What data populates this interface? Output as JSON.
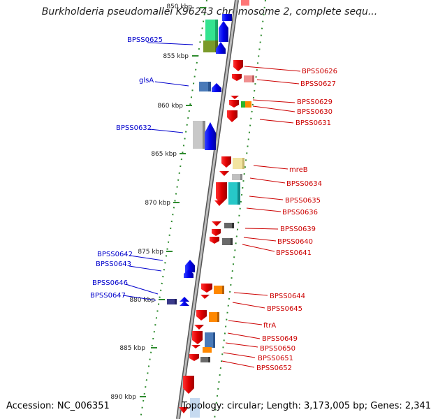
{
  "title": "Burkholderia pseudomallei K96243 chromosome 2, complete sequ...",
  "footer": {
    "accession": "Accession: NC_006351",
    "summary": "Topology: circular; Length: 3,173,005 bp; Genes: 2,341"
  },
  "colors": {
    "forward_label": "#0000cc",
    "reverse_label": "#cc0000",
    "backbone": "#8a8a8a",
    "tick": "#2e8b2e"
  },
  "ticks": [
    {
      "label": "850 kbp",
      "kbp": 850
    },
    {
      "label": "855 kbp",
      "kbp": 855
    },
    {
      "label": "860 kbp",
      "kbp": 860
    },
    {
      "label": "865 kbp",
      "kbp": 865
    },
    {
      "label": "870 kbp",
      "kbp": 870
    },
    {
      "label": "875 kbp",
      "kbp": 875
    },
    {
      "label": "880 kbp",
      "kbp": 880
    },
    {
      "label": "885 kbp",
      "kbp": 885
    },
    {
      "label": "890 kbp",
      "kbp": 890
    }
  ],
  "genes_forward": [
    "BPSS0625",
    "glsA",
    "BPSS0632",
    "BPSS0642",
    "BPSS0643",
    "BPSS0646",
    "BPSS0647"
  ],
  "genes_reverse": [
    "BPSS0626",
    "BPSS0627",
    "BPSS0629",
    "BPSS0630",
    "BPSS0631",
    "mreB",
    "BPSS0634",
    "BPSS0635",
    "BPSS0636",
    "BPSS0639",
    "BPSS0640",
    "BPSS0641",
    "BPSS0644",
    "BPSS0645",
    "ftrA",
    "BPSS0649",
    "BPSS0650",
    "BPSS0651",
    "BPSS0652"
  ]
}
